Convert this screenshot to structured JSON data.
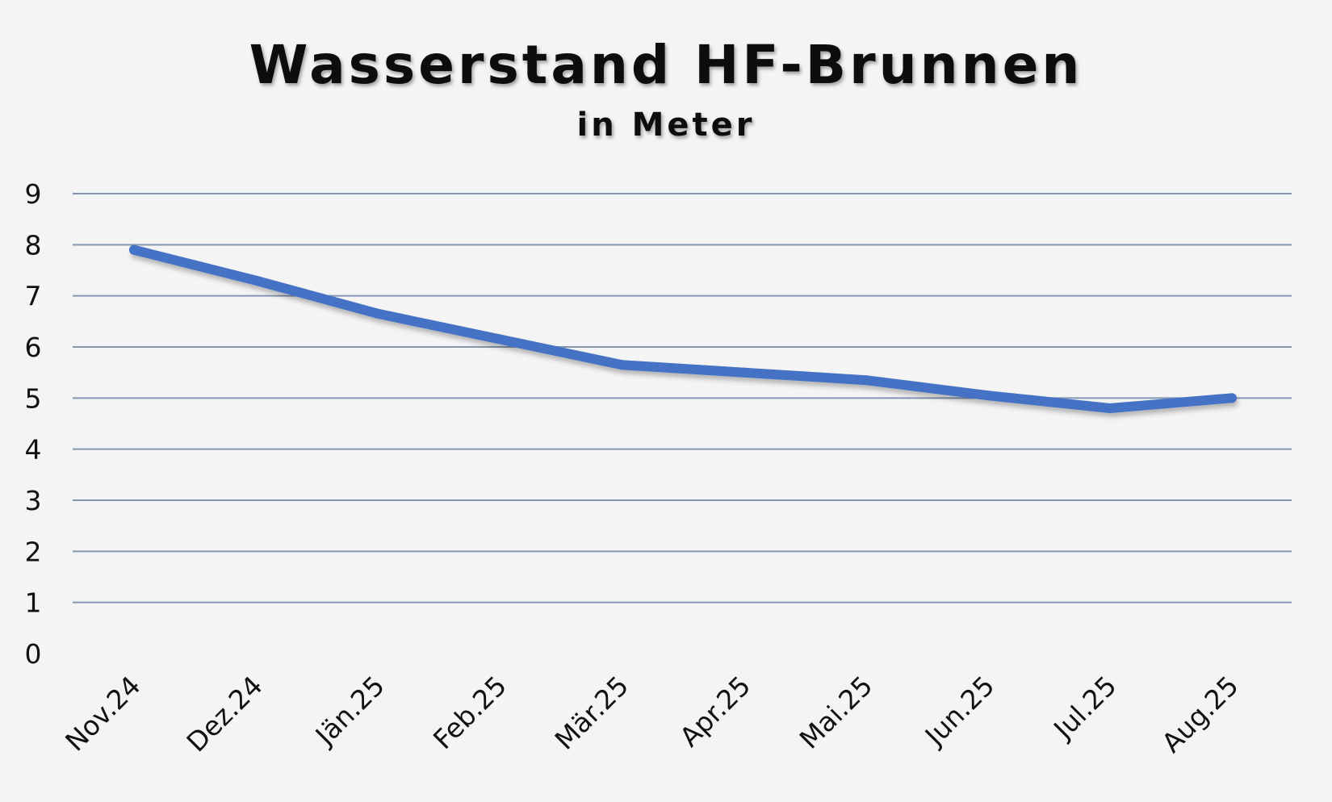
{
  "chart_data": {
    "type": "line",
    "title": "Wasserstand HF-Brunnen",
    "subtitle": "in Meter",
    "xlabel": "",
    "ylabel": "",
    "categories": [
      "Nov.24",
      "Dez.24",
      "Jän.25",
      "Feb.25",
      "Mär.25",
      "Apr.25",
      "Mai.25",
      "Jun.25",
      "Jul.25",
      "Aug.25"
    ],
    "series": [
      {
        "values": [
          7.9,
          7.3,
          6.65,
          6.15,
          5.65,
          5.5,
          5.35,
          5.05,
          4.8,
          5.0
        ]
      }
    ],
    "ylim": [
      0,
      9
    ],
    "yticks": [
      "0",
      "1",
      "2",
      "3",
      "4",
      "5",
      "6",
      "7",
      "8",
      "9"
    ],
    "grid": true,
    "legend": "none",
    "colors": {
      "line": "#4472c4",
      "gridline": "#8496b0",
      "background": "#f4f4f4",
      "text": "#111111"
    }
  }
}
